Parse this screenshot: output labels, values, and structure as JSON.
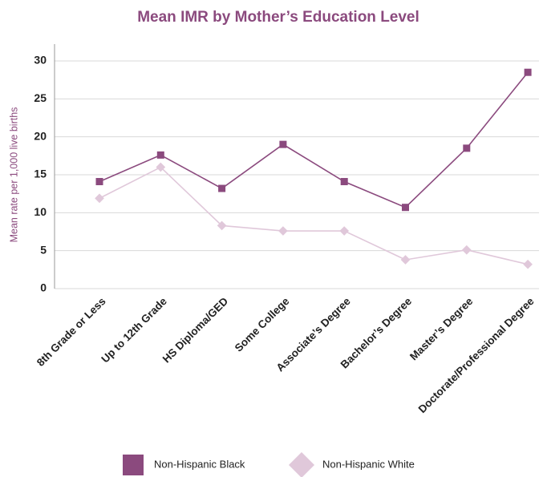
{
  "chart_data": {
    "type": "line",
    "title": "Mean IMR by Mother’s Education Level",
    "y_label": "Mean rate per 1,000 live births",
    "categories": [
      "8th Grade or Less",
      "Up to 12th Grade",
      "HS Diploma/GED",
      "Some College",
      "Associate’s Degree",
      "Bachelor’s Degree",
      "Master’s Degree",
      "Doctorate/Professional Degree"
    ],
    "series": [
      {
        "name": "Non-Hispanic Black",
        "color": "#8b4a7e",
        "marker": "square",
        "values": [
          14.1,
          17.6,
          13.2,
          19.0,
          14.1,
          10.7,
          18.5,
          28.5
        ]
      },
      {
        "name": "Non-Hispanic White",
        "color": "#e0c8da",
        "marker": "diamond",
        "values": [
          11.9,
          16.0,
          8.3,
          7.6,
          7.6,
          3.8,
          5.1,
          3.2
        ]
      }
    ],
    "ylim": [
      0,
      30
    ],
    "yticks": [
      0,
      5,
      10,
      15,
      20,
      25,
      30
    ],
    "grid": true,
    "legend": "bottom"
  }
}
